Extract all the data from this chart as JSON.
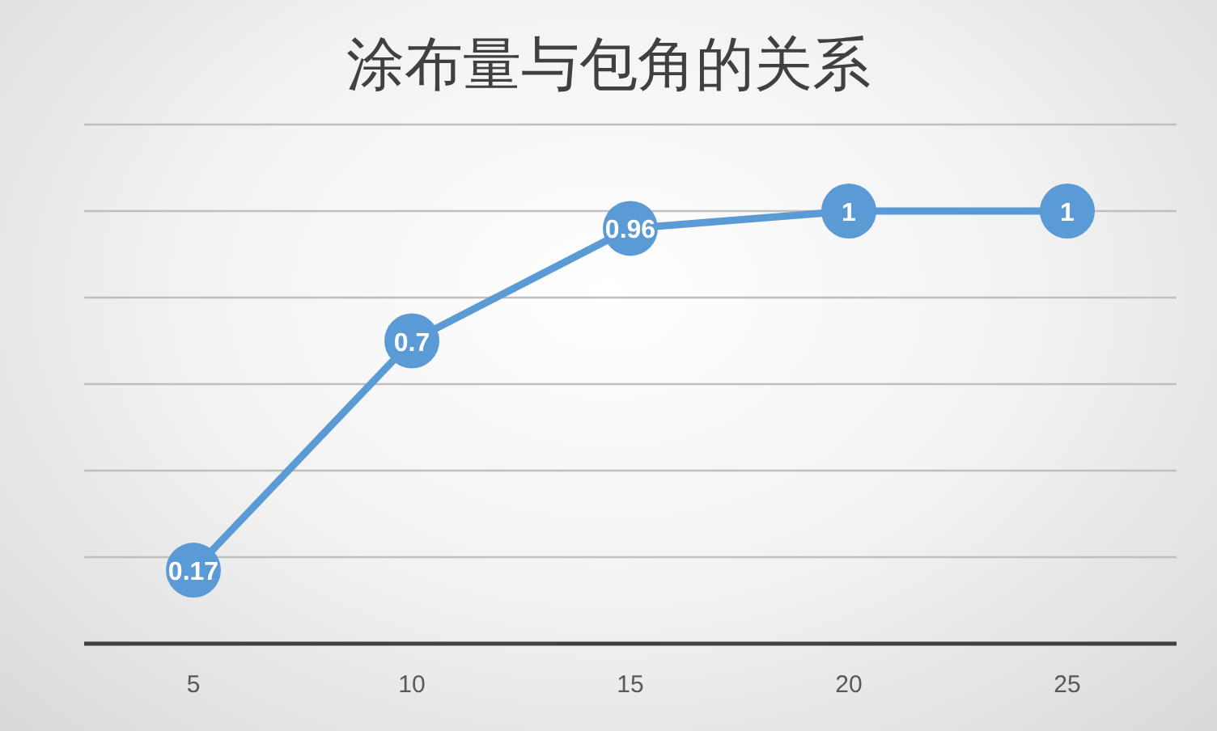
{
  "chart_data": {
    "type": "line",
    "title": "涂布量与包角的关系",
    "categories": [
      "5",
      "10",
      "15",
      "20",
      "25"
    ],
    "series": [
      {
        "color": "#5b9bd5",
        "values": [
          0.17,
          0.7,
          0.96,
          1,
          1
        ]
      }
    ],
    "ylim": [
      0,
      1.2
    ],
    "yticks": [
      {
        "value": 0,
        "label": null
      },
      {
        "value": 0.2,
        "label": null
      },
      {
        "value": 0.4,
        "label": null
      },
      {
        "value": 0.6,
        "label": null
      },
      {
        "value": 0.8,
        "label": null
      },
      {
        "value": 1.0,
        "label": null
      },
      {
        "value": 1.2,
        "label": null
      }
    ],
    "tick_labels": "x",
    "grid": "y",
    "marker": "circle",
    "line_style": "solid",
    "data_labels": true
  }
}
